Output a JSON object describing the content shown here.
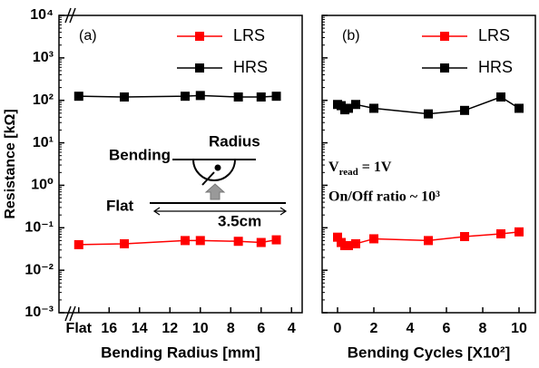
{
  "chart_data": [
    {
      "type": "line",
      "ylog": true,
      "panel_label": "(a)",
      "ylabel": "Resistance [kΩ]",
      "xlabel": "Bending Radius [mm]",
      "xlim": [
        19.3,
        3.3
      ],
      "xticks": [
        {
          "value": 18,
          "label": "Flat"
        },
        16,
        14,
        12,
        10,
        8,
        6,
        4
      ],
      "ylim": [
        0.001,
        10000
      ],
      "yticks": [
        {
          "value": 0.001,
          "label": "10⁻³"
        },
        {
          "value": 0.01,
          "label": "10⁻²"
        },
        {
          "value": 0.1,
          "label": "10⁻¹"
        },
        {
          "value": 1,
          "label": "10⁰"
        },
        {
          "value": 10,
          "label": "10¹"
        },
        {
          "value": 100,
          "label": "10²"
        },
        {
          "value": 1000,
          "label": "10³"
        },
        {
          "value": 10000,
          "label": "10⁴"
        }
      ],
      "x": [
        18,
        15,
        11,
        10,
        7.5,
        6,
        5
      ],
      "series": [
        {
          "name": "LRS",
          "color": "#ff0000",
          "values": [
            0.04,
            0.042,
            0.05,
            0.05,
            0.048,
            0.045,
            0.052
          ]
        },
        {
          "name": "HRS",
          "color": "#000000",
          "values": [
            125,
            120,
            125,
            130,
            120,
            120,
            125
          ]
        }
      ],
      "annotations": [
        "Bending",
        "Radius",
        "Flat",
        "3.5cm"
      ]
    },
    {
      "type": "line",
      "ylog": true,
      "panel_label": "(b)",
      "xlabel": "Bending Cycles [X10²]",
      "xlim": [
        -0.85,
        10.9
      ],
      "xticks": [
        0,
        2,
        4,
        6,
        8,
        10
      ],
      "ylim": [
        0.001,
        10000
      ],
      "yticks": [
        0.001,
        0.01,
        0.1,
        1,
        10,
        100,
        1000,
        10000
      ],
      "x": [
        0,
        0.2,
        0.4,
        0.6,
        1,
        2,
        5,
        7,
        9,
        10
      ],
      "series": [
        {
          "name": "LRS",
          "color": "#ff0000",
          "values": [
            0.06,
            0.045,
            0.038,
            0.038,
            0.042,
            0.055,
            0.05,
            0.062,
            0.072,
            0.08
          ]
        },
        {
          "name": "HRS",
          "color": "#000000",
          "values": [
            80,
            75,
            60,
            65,
            80,
            65,
            48,
            58,
            120,
            65
          ]
        }
      ],
      "vread": [
        "V",
        "read",
        " = 1V"
      ],
      "annotations": [
        "On/Off ratio ~ 10³"
      ]
    }
  ]
}
